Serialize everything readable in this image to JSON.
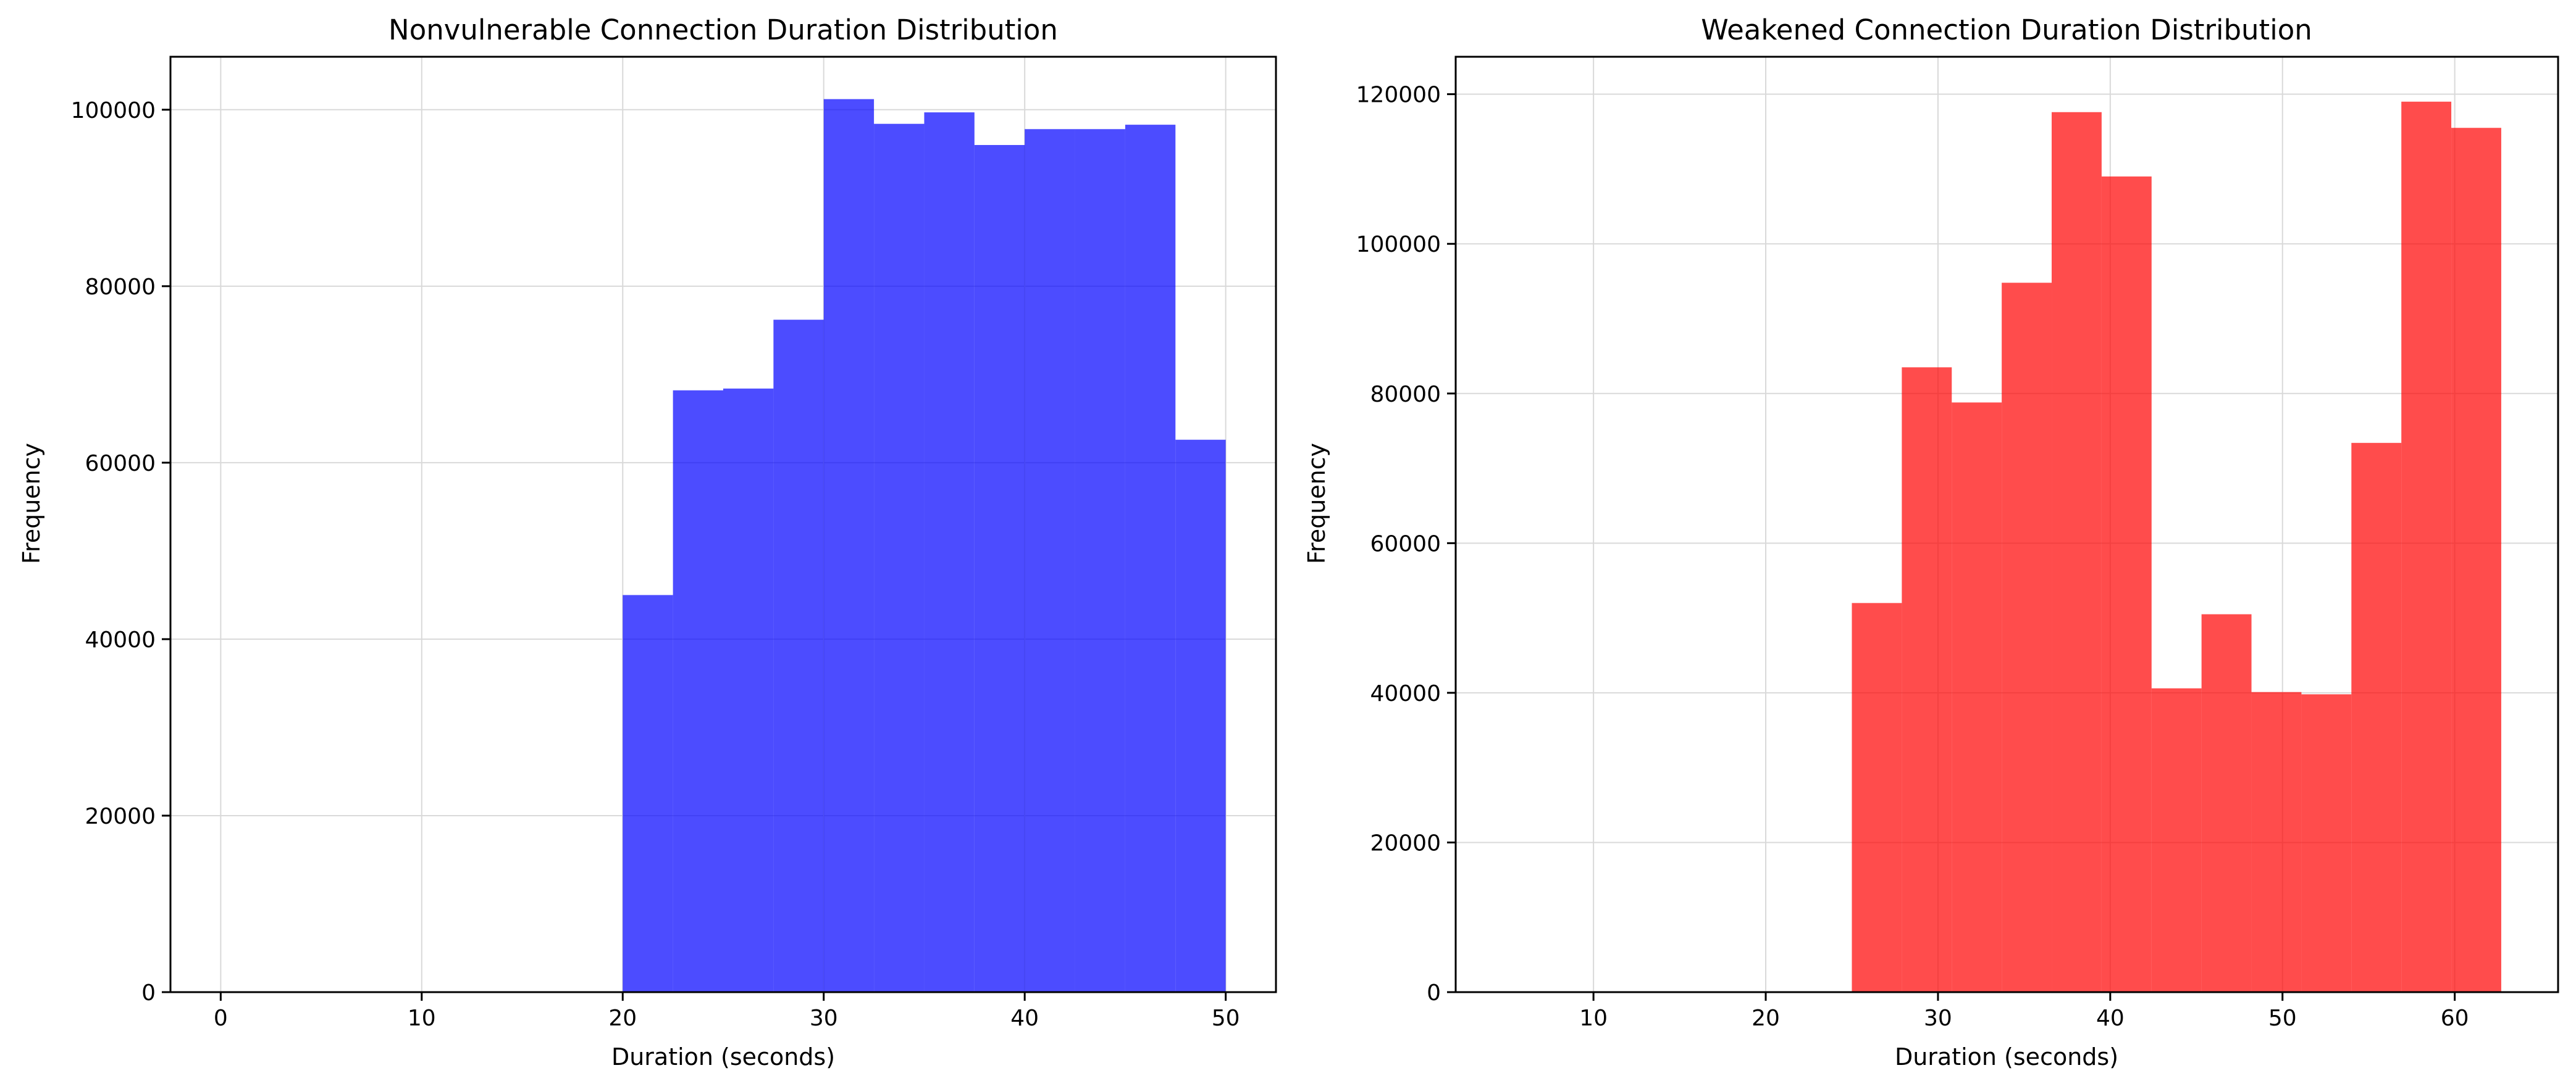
{
  "chart_data": [
    {
      "type": "bar",
      "title": "Nonvulnerable Connection Duration Distribution",
      "xlabel": "Duration (seconds)",
      "ylabel": "Frequency",
      "xlim": [
        -2.5,
        52.5
      ],
      "ylim": [
        0,
        106000
      ],
      "xticks": [
        "0",
        "10",
        "20",
        "30",
        "40",
        "50"
      ],
      "yticks": [
        "0",
        "20000",
        "40000",
        "60000",
        "80000",
        "100000"
      ],
      "grid": true,
      "color": "#0000ff",
      "bin_edges": [
        20,
        22.5,
        25,
        27.5,
        30,
        32.5,
        35,
        37.5,
        40,
        42.5,
        45,
        47.5,
        50
      ],
      "values": [
        45000,
        68200,
        68400,
        76200,
        101200,
        98400,
        99700,
        96000,
        97800,
        97800,
        98300,
        62600
      ]
    },
    {
      "type": "bar",
      "title": "Weakened Connection Duration Distribution",
      "xlabel": "Duration (seconds)",
      "ylabel": "Frequency",
      "xlim": [
        2,
        66
      ],
      "ylim": [
        0,
        125000
      ],
      "xticks": [
        "10",
        "20",
        "30",
        "40",
        "50",
        "60"
      ],
      "yticks": [
        "0",
        "20000",
        "40000",
        "60000",
        "80000",
        "100000",
        "120000"
      ],
      "grid": true,
      "color": "#ff0000",
      "bin_edges": [
        25,
        27.9,
        30.8,
        33.7,
        36.6,
        39.5,
        42.4,
        45.3,
        48.2,
        51.1,
        54,
        56.9,
        59.8,
        62.7
      ],
      "values": [
        52000,
        83500,
        78800,
        94800,
        117600,
        109000,
        40600,
        50500,
        40100,
        39800,
        73400,
        119000,
        115500
      ]
    }
  ]
}
